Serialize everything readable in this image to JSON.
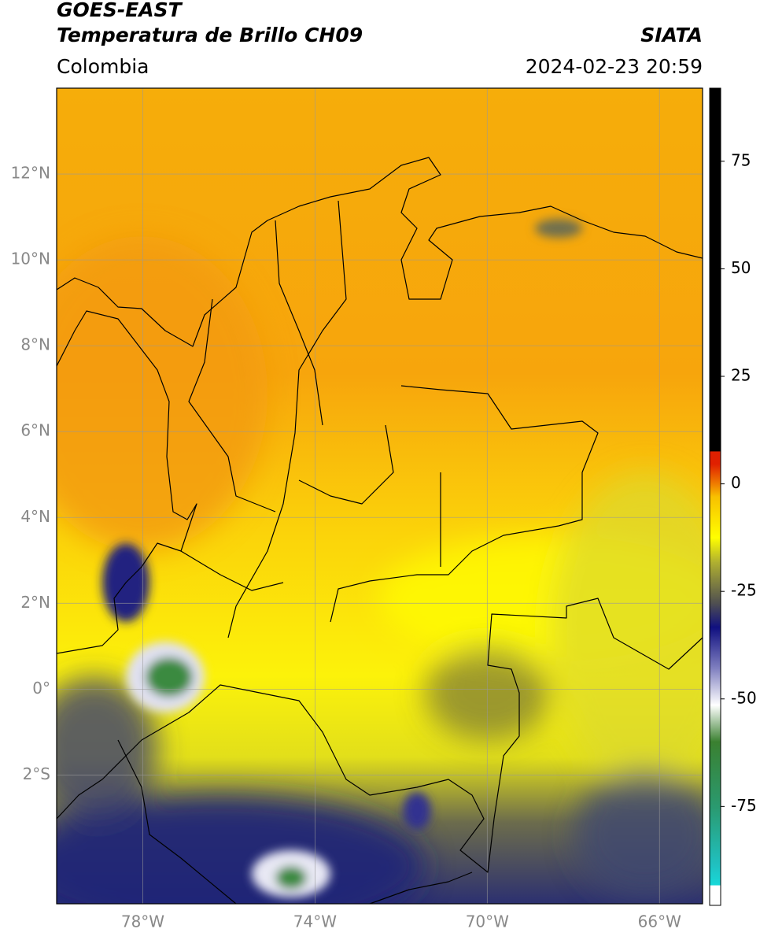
{
  "header": {
    "title": "GOES-EAST",
    "subtitle": "Temperatura de Brillo CH09",
    "source": "SIATA",
    "region": "Colombia",
    "datetime": "2024-02-23 20:59"
  },
  "map": {
    "lat_range": [
      -5,
      14
    ],
    "lon_range": [
      -80,
      -65
    ],
    "lat_ticks": [
      {
        "value": 12,
        "label": "12°N"
      },
      {
        "value": 10,
        "label": "10°N"
      },
      {
        "value": 8,
        "label": "8°N"
      },
      {
        "value": 6,
        "label": "6°N"
      },
      {
        "value": 4,
        "label": "4°N"
      },
      {
        "value": 2,
        "label": "2°N"
      },
      {
        "value": 0,
        "label": "0°"
      },
      {
        "value": -2,
        "label": "2°S"
      }
    ],
    "lon_ticks": [
      {
        "value": -78,
        "label": "78°W"
      },
      {
        "value": -74,
        "label": "74°W"
      },
      {
        "value": -70,
        "label": "70°W"
      },
      {
        "value": -66,
        "label": "66°W"
      }
    ]
  },
  "colorbar": {
    "range": [
      -98,
      92
    ],
    "ticks": [
      75,
      50,
      25,
      0,
      -25,
      -50,
      -75
    ]
  }
}
